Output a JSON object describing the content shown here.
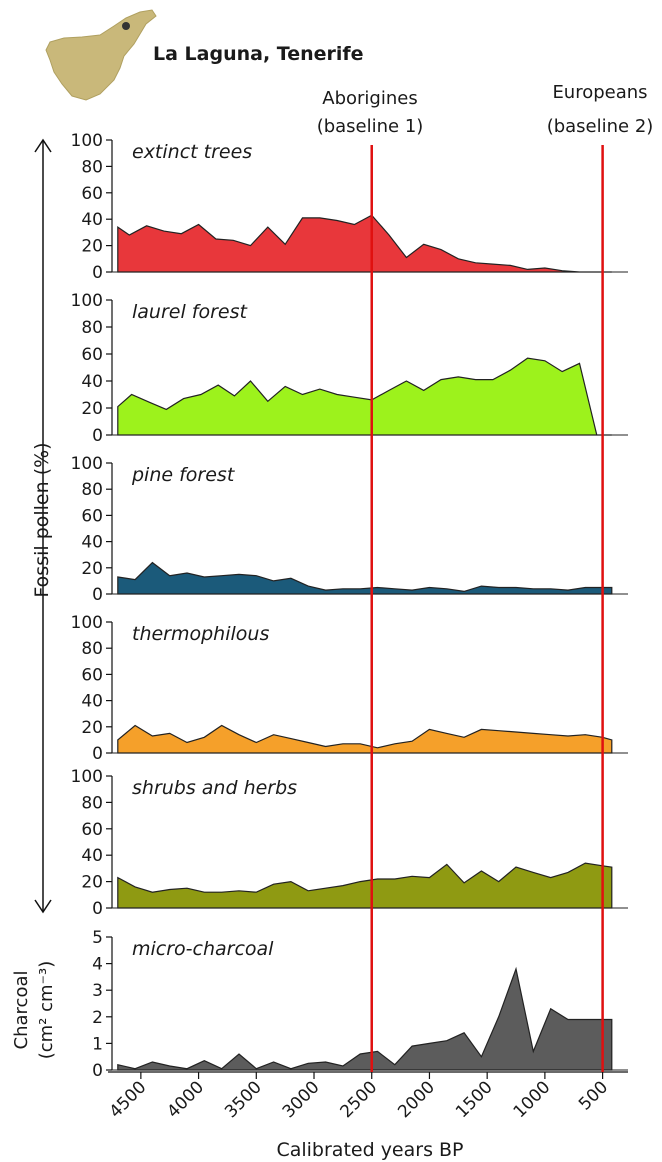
{
  "header": {
    "location": "La Laguna, Tenerife"
  },
  "baselines": [
    {
      "year": 2500,
      "line1": "Aborigines",
      "line2": "(baseline 1)",
      "color": "#e01010"
    },
    {
      "year": 500,
      "line1": "Europeans",
      "line2": "(baseline 2)",
      "color": "#e01010"
    }
  ],
  "axes": {
    "ylabel_pollen": "Fossil pollen  (%)",
    "ylabel_charcoal_line1": "Charcoal",
    "ylabel_charcoal_line2": "(cm² cm⁻³)",
    "xlabel": "Calibrated years BP",
    "xticks": [
      "4500",
      "4000",
      "3500",
      "3000",
      "2500",
      "2000",
      "1500",
      "1000",
      "500"
    ]
  },
  "chart_data": [
    {
      "type": "area",
      "title": "extinct trees",
      "color": "#e8373b",
      "ylim": [
        0,
        100
      ],
      "yticks": [
        "0",
        "20",
        "40",
        "60",
        "80",
        "100"
      ],
      "x": [
        4700,
        4600,
        4450,
        4300,
        4150,
        4000,
        3850,
        3700,
        3550,
        3400,
        3250,
        3100,
        2950,
        2800,
        2650,
        2500,
        2350,
        2200,
        2050,
        1900,
        1750,
        1600,
        1450,
        1300,
        1150,
        1000,
        850,
        700,
        550,
        420
      ],
      "y": [
        34,
        28,
        35,
        31,
        29,
        36,
        25,
        24,
        20,
        34,
        21,
        41,
        41,
        39,
        36,
        43,
        28,
        11,
        21,
        17,
        10,
        7,
        6,
        5,
        2,
        3,
        1,
        0,
        0,
        0
      ]
    },
    {
      "type": "area",
      "title": "laurel forest",
      "color": "#9df21c",
      "ylim": [
        0,
        100
      ],
      "yticks": [
        "0",
        "20",
        "40",
        "60",
        "80",
        "100"
      ],
      "x": [
        4700,
        4580,
        4420,
        4280,
        4130,
        3980,
        3830,
        3690,
        3550,
        3400,
        3250,
        3100,
        2950,
        2800,
        2650,
        2500,
        2350,
        2200,
        2050,
        1900,
        1750,
        1600,
        1450,
        1300,
        1150,
        1000,
        850,
        700,
        550,
        420
      ],
      "y": [
        21,
        30,
        24,
        19,
        27,
        30,
        37,
        29,
        40,
        25,
        36,
        30,
        34,
        30,
        28,
        26,
        33,
        40,
        33,
        41,
        43,
        41,
        41,
        48,
        57,
        55,
        47,
        53,
        0,
        0
      ]
    },
    {
      "type": "area",
      "title": "pine forest",
      "color": "#1b5a7a",
      "ylim": [
        0,
        100
      ],
      "yticks": [
        "0",
        "20",
        "40",
        "60",
        "80",
        "100"
      ],
      "x": [
        4700,
        4550,
        4400,
        4250,
        4100,
        3950,
        3800,
        3650,
        3500,
        3350,
        3200,
        3050,
        2900,
        2750,
        2600,
        2450,
        2300,
        2150,
        2000,
        1850,
        1700,
        1550,
        1400,
        1250,
        1100,
        950,
        800,
        650,
        500,
        420
      ],
      "y": [
        13,
        11,
        24,
        14,
        16,
        13,
        14,
        15,
        14,
        10,
        12,
        6,
        3,
        4,
        4,
        5,
        4,
        3,
        5,
        4,
        2,
        6,
        5,
        5,
        4,
        4,
        3,
        5,
        5,
        5
      ]
    },
    {
      "type": "area",
      "title": "thermophilous",
      "color": "#f5a02a",
      "ylim": [
        0,
        100
      ],
      "yticks": [
        "0",
        "20",
        "40",
        "60",
        "80",
        "100"
      ],
      "x": [
        4700,
        4550,
        4400,
        4250,
        4100,
        3950,
        3800,
        3650,
        3500,
        3350,
        3200,
        3050,
        2900,
        2750,
        2600,
        2450,
        2300,
        2150,
        2000,
        1850,
        1700,
        1550,
        1400,
        1250,
        1100,
        950,
        800,
        650,
        500,
        420
      ],
      "y": [
        10,
        21,
        13,
        15,
        8,
        12,
        21,
        14,
        8,
        14,
        11,
        8,
        5,
        7,
        7,
        4,
        7,
        9,
        18,
        15,
        12,
        18,
        17,
        16,
        15,
        14,
        13,
        14,
        12,
        10
      ]
    },
    {
      "type": "area",
      "title": "shrubs and herbs",
      "color": "#8f9a12",
      "ylim": [
        0,
        100
      ],
      "yticks": [
        "0",
        "20",
        "40",
        "60",
        "80",
        "100"
      ],
      "x": [
        4700,
        4550,
        4400,
        4250,
        4100,
        3950,
        3800,
        3650,
        3500,
        3350,
        3200,
        3050,
        2900,
        2750,
        2600,
        2450,
        2300,
        2150,
        2000,
        1850,
        1700,
        1550,
        1400,
        1250,
        1100,
        950,
        800,
        650,
        500,
        420
      ],
      "y": [
        23,
        16,
        12,
        14,
        15,
        12,
        12,
        13,
        12,
        18,
        20,
        13,
        15,
        17,
        20,
        22,
        22,
        24,
        23,
        33,
        19,
        28,
        20,
        31,
        27,
        23,
        27,
        34,
        32,
        31
      ]
    },
    {
      "type": "area",
      "title": "micro-charcoal",
      "color": "#5c5c5c",
      "ylim": [
        0,
        5
      ],
      "yticks": [
        "0",
        "1",
        "2",
        "3",
        "4",
        "5"
      ],
      "x": [
        4700,
        4550,
        4400,
        4250,
        4100,
        3950,
        3800,
        3650,
        3500,
        3350,
        3200,
        3050,
        2900,
        2750,
        2600,
        2450,
        2300,
        2150,
        2000,
        1850,
        1700,
        1550,
        1400,
        1250,
        1100,
        950,
        800,
        650,
        500,
        420
      ],
      "y": [
        0.2,
        0.05,
        0.3,
        0.15,
        0.05,
        0.35,
        0.05,
        0.6,
        0.05,
        0.3,
        0.05,
        0.25,
        0.3,
        0.15,
        0.6,
        0.7,
        0.2,
        0.9,
        1.0,
        1.1,
        1.4,
        0.5,
        2.0,
        3.8,
        0.7,
        2.3,
        1.9,
        1.9,
        1.9,
        1.9
      ]
    }
  ]
}
